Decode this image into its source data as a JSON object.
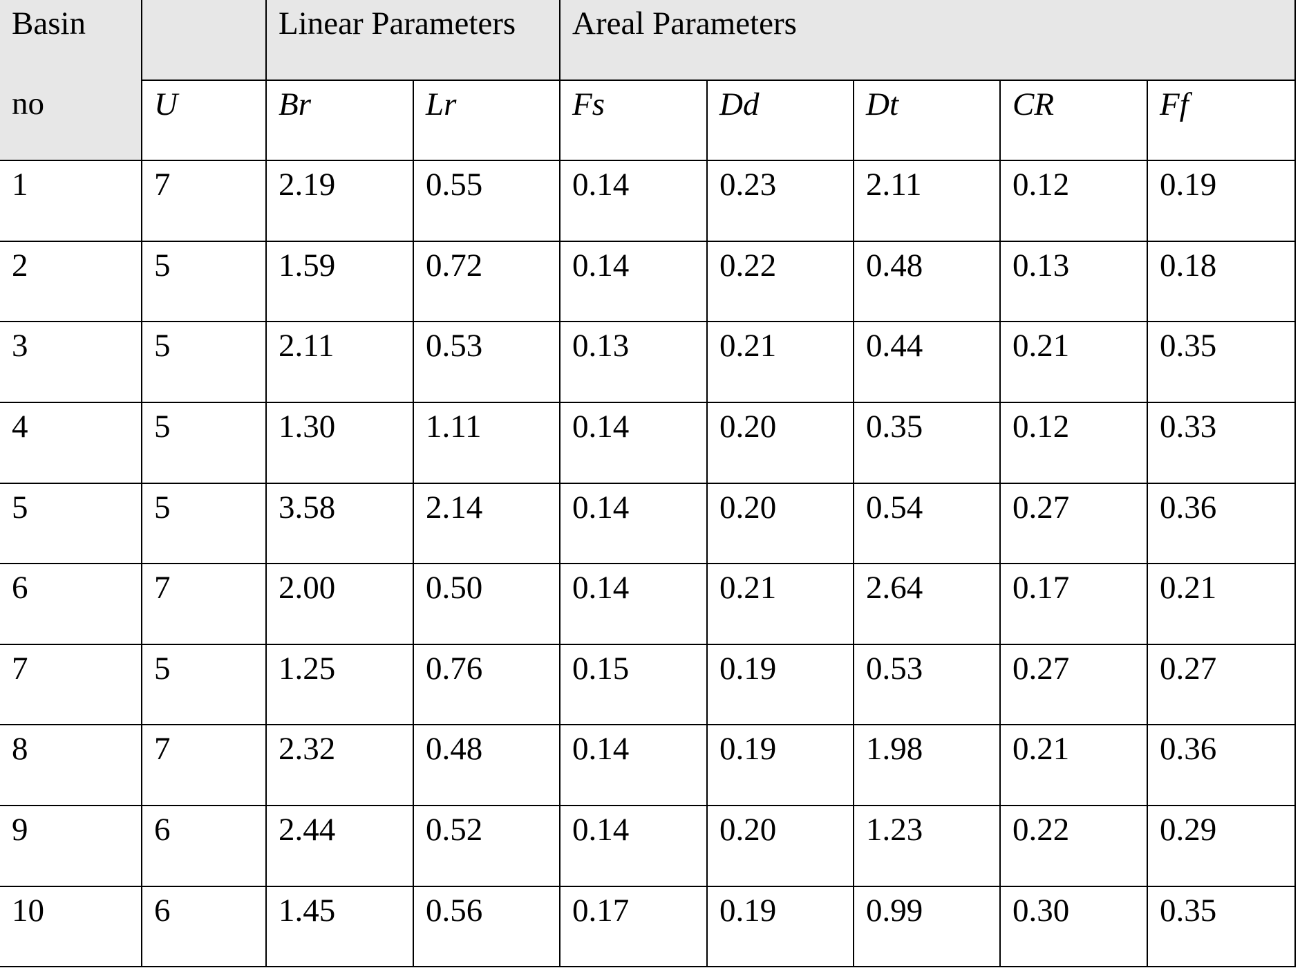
{
  "table": {
    "header": {
      "basin": "Basin",
      "no": "no",
      "linear": "Linear Parameters",
      "areal": "Areal Parameters",
      "columns": [
        "U",
        "Br",
        "Lr",
        "Fs",
        "Dd",
        "Dt",
        "CR",
        "Ff"
      ]
    },
    "rows": [
      [
        "1",
        "7",
        "2.19",
        "0.55",
        "0.14",
        "0.23",
        "2.11",
        "0.12",
        "0.19"
      ],
      [
        "2",
        "5",
        "1.59",
        "0.72",
        "0.14",
        "0.22",
        "0.48",
        "0.13",
        "0.18"
      ],
      [
        "3",
        "5",
        "2.11",
        "0.53",
        "0.13",
        "0.21",
        "0.44",
        "0.21",
        "0.35"
      ],
      [
        "4",
        "5",
        "1.30",
        "1.11",
        "0.14",
        "0.20",
        "0.35",
        "0.12",
        "0.33"
      ],
      [
        "5",
        "5",
        "3.58",
        "2.14",
        "0.14",
        "0.20",
        "0.54",
        "0.27",
        "0.36"
      ],
      [
        "6",
        "7",
        "2.00",
        "0.50",
        "0.14",
        "0.21",
        "2.64",
        "0.17",
        "0.21"
      ],
      [
        "7",
        "5",
        "1.25",
        "0.76",
        "0.15",
        "0.19",
        "0.53",
        "0.27",
        "0.27"
      ],
      [
        "8",
        "7",
        "2.32",
        "0.48",
        "0.14",
        "0.19",
        "1.98",
        "0.21",
        "0.36"
      ],
      [
        "9",
        "6",
        "2.44",
        "0.52",
        "0.14",
        "0.20",
        "1.23",
        "0.22",
        "0.29"
      ],
      [
        "10",
        "6",
        "1.45",
        "0.56",
        "0.17",
        "0.19",
        "0.99",
        "0.30",
        "0.35"
      ]
    ]
  }
}
